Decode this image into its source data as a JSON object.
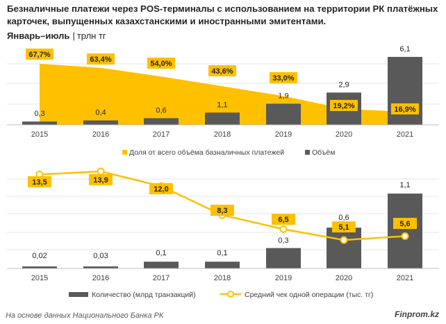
{
  "header": {
    "title": "Безналичные платежи через POS-терминалы с использованием на территории РК платёжных карточек, выпущенных казахстанскими и иностранными эмитентами.",
    "period": "Январь–июль",
    "unit": "трлн тг"
  },
  "colors": {
    "yellow": "#FFC000",
    "bar": "#595959",
    "bar_top": "#595959",
    "line": "#FFC000"
  },
  "chart_data": [
    {
      "type": "bar",
      "categories": [
        "2015",
        "2016",
        "2017",
        "2018",
        "2019",
        "2020",
        "2021"
      ],
      "series": [
        {
          "name": "Доля от всего объёма базналичных платежей",
          "kind": "area",
          "unit": "%",
          "values": [
            67.7,
            63.4,
            54.0,
            43.6,
            33.0,
            19.2,
            16.9
          ],
          "labels": [
            "67,7%",
            "63,4%",
            "54,0%",
            "43,6%",
            "33,0%",
            "19,2%",
            "16,9%"
          ]
        },
        {
          "name": "Объём",
          "kind": "bar",
          "unit": "трлн тг",
          "values": [
            0.3,
            0.4,
            0.6,
            1.1,
            1.9,
            2.9,
            6.1
          ],
          "labels": [
            "0,3",
            "0,4",
            "0,6",
            "1,1",
            "1,9",
            "2,9",
            "6,1"
          ]
        }
      ]
    },
    {
      "type": "bar",
      "categories": [
        "2015",
        "2016",
        "2017",
        "2018",
        "2019",
        "2020",
        "2021"
      ],
      "series": [
        {
          "name": "Количество (млрд транзакций)",
          "kind": "bar",
          "values": [
            0.02,
            0.03,
            0.1,
            0.1,
            0.3,
            0.6,
            1.1
          ],
          "labels": [
            "0,02",
            "0,03",
            "0,1",
            "0,1",
            "0,3",
            "0,6",
            "1,1"
          ]
        },
        {
          "name": "Средний чек одной операции (тыс. тг)",
          "kind": "line",
          "values": [
            13.5,
            13.9,
            12.0,
            8.3,
            6.5,
            5.1,
            5.6
          ],
          "labels": [
            "13,5",
            "13,9",
            "12,0",
            "8,3",
            "6,5",
            "5,1",
            "5,6"
          ]
        }
      ]
    }
  ],
  "footer": {
    "source": "На основе данных Национального Банка РК",
    "brand": "Finprom.kz"
  }
}
